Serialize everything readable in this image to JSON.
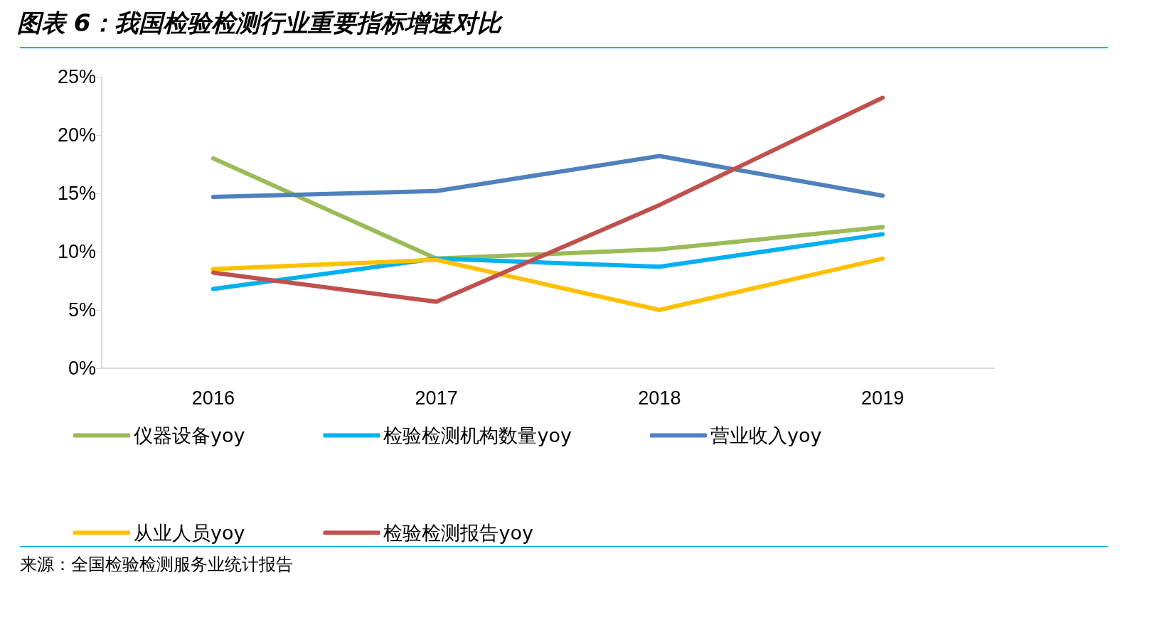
{
  "chart_data": {
    "type": "line",
    "title": "图表 6：我国检验检测行业重要指标增速对比",
    "categories": [
      "2016",
      "2017",
      "2018",
      "2019"
    ],
    "series": [
      {
        "name": "仪器设备yoy",
        "color": "#9bbb59",
        "values": [
          18.0,
          9.4,
          10.2,
          12.1
        ]
      },
      {
        "name": "检验检测机构数量yoy",
        "color": "#00b0f0",
        "values": [
          6.8,
          9.4,
          8.7,
          11.5
        ]
      },
      {
        "name": "营业收入yoy",
        "color": "#4f81bd",
        "values": [
          14.7,
          15.2,
          18.2,
          14.8
        ]
      },
      {
        "name": "从业人员yoy",
        "color": "#ffc000",
        "values": [
          8.5,
          9.3,
          5.0,
          9.4
        ]
      },
      {
        "name": "检验检测报告yoy",
        "color": "#c0504d",
        "values": [
          8.2,
          5.7,
          14.0,
          23.2
        ]
      }
    ],
    "ylim": [
      0,
      25
    ],
    "yticks": [
      {
        "value": 0,
        "label": "0%"
      },
      {
        "value": 5,
        "label": "5%"
      },
      {
        "value": 10,
        "label": "10%"
      },
      {
        "value": 15,
        "label": "15%"
      },
      {
        "value": 20,
        "label": "20%"
      },
      {
        "value": 25,
        "label": "25%"
      }
    ],
    "grid": false,
    "legend": "bottom",
    "marker": "none",
    "line_style": "solid",
    "annotations": [
      "来源：全国检验检测服务业统计报告"
    ]
  }
}
